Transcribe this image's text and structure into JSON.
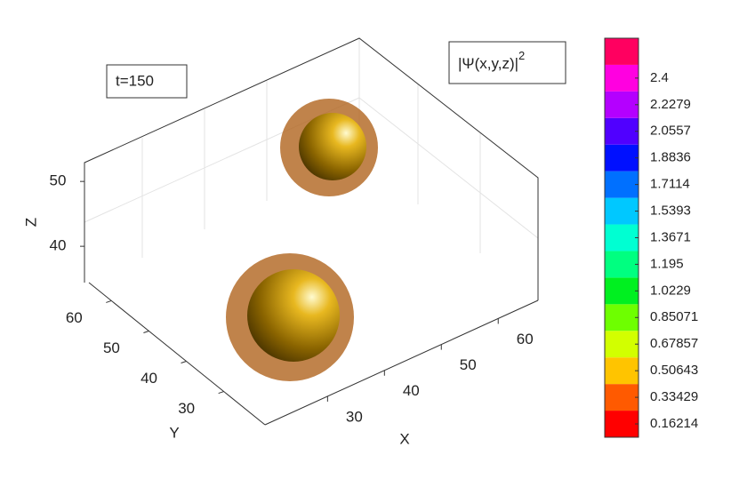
{
  "chart_data": {
    "type": "isosurface",
    "annotation": "t=150",
    "title": "|Ψ(x,y,z)|",
    "title_sup": "2",
    "xlabel": "X",
    "ylabel": "Y",
    "zlabel": "Z",
    "xlim": [
      19,
      67
    ],
    "xticks": [
      30,
      40,
      50,
      60
    ],
    "ylim": [
      19,
      66
    ],
    "yticks": [
      30,
      40,
      50,
      60
    ],
    "zlim": [
      34.4,
      52.9
    ],
    "zticks": [
      40,
      50
    ],
    "colorbar": {
      "clim": [
        0.076,
        2.658
      ],
      "ticks": [
        0.16214,
        0.33429,
        0.50643,
        0.67857,
        0.85071,
        1.0229,
        1.195,
        1.3671,
        1.5393,
        1.7114,
        1.8836,
        2.0557,
        2.2279,
        2.4
      ],
      "colors": [
        "#ff0000",
        "#ff5a00",
        "#ffc400",
        "#d2ff00",
        "#6eff00",
        "#00f020",
        "#00ff80",
        "#00ffd2",
        "#00c8ff",
        "#0070ff",
        "#0010ff",
        "#5000ff",
        "#b400ff",
        "#ff00e0",
        "#ff0060"
      ]
    },
    "grid": true
  }
}
